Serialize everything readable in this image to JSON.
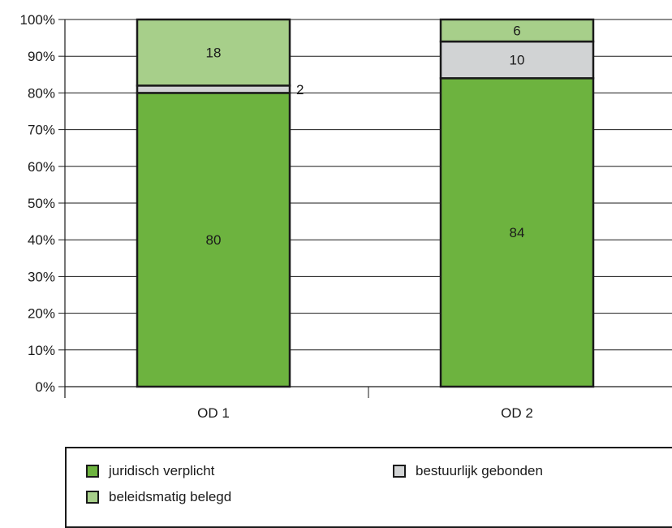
{
  "chart_data": {
    "type": "bar",
    "stacked": true,
    "categories": [
      "OD 1",
      "OD 2"
    ],
    "series": [
      {
        "name": "juridisch verplicht",
        "values": [
          80,
          84
        ],
        "color": "#6db33f"
      },
      {
        "name": "bestuurlijk gebonden",
        "values": [
          2,
          10
        ],
        "color": "#d1d3d4"
      },
      {
        "name": "beleidsmatig belegd",
        "values": [
          18,
          6
        ],
        "color": "#a7cf8a"
      }
    ],
    "data_labels": [
      [
        "80",
        "84"
      ],
      [
        "2",
        "10"
      ],
      [
        "18",
        "6"
      ]
    ],
    "ylim": [
      0,
      100
    ],
    "yticks": [
      "0%",
      "10%",
      "20%",
      "30%",
      "40%",
      "50%",
      "60%",
      "70%",
      "80%",
      "90%",
      "100%"
    ],
    "grid": true,
    "legend_position": "bottom"
  },
  "legend": {
    "items": [
      {
        "label": "juridisch verplicht",
        "color": "#6db33f"
      },
      {
        "label": "bestuurlijk gebonden",
        "color": "#d1d3d4"
      },
      {
        "label": "beleidsmatig belegd",
        "color": "#a7cf8a"
      }
    ]
  }
}
